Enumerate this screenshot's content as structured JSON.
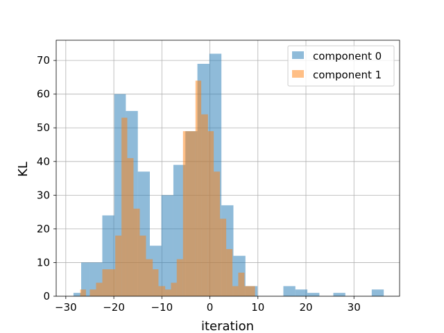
{
  "chart_data": {
    "type": "bar",
    "subtype": "overlaid-histogram",
    "xlabel": "iteration",
    "ylabel": "KL",
    "xlim": [
      -32.0,
      39.5
    ],
    "ylim": [
      0,
      76
    ],
    "xticks": [
      -30,
      -20,
      -10,
      0,
      10,
      20,
      30
    ],
    "yticks": [
      0,
      10,
      20,
      30,
      40,
      50,
      60,
      70
    ],
    "grid": true,
    "legend_position": "top-right",
    "series": [
      {
        "name": "component 0",
        "color": "#1f77b4",
        "alpha": 0.5,
        "bins": [
          [
            -28.4,
            -26.8,
            1
          ],
          [
            -26.8,
            -25.0,
            10
          ],
          [
            -25.0,
            -22.4,
            10
          ],
          [
            -22.4,
            -19.9,
            24
          ],
          [
            -19.9,
            -17.5,
            60
          ],
          [
            -17.5,
            -15.0,
            55
          ],
          [
            -15.0,
            -12.5,
            37
          ],
          [
            -12.5,
            -10.1,
            15
          ],
          [
            -10.1,
            -7.6,
            30
          ],
          [
            -7.6,
            -5.1,
            39
          ],
          [
            -5.1,
            -2.6,
            49
          ],
          [
            -2.6,
            -0.1,
            69
          ],
          [
            -0.1,
            2.4,
            72
          ],
          [
            2.4,
            4.9,
            27
          ],
          [
            4.9,
            7.4,
            12
          ],
          [
            7.4,
            9.9,
            3
          ],
          [
            15.3,
            17.8,
            3
          ],
          [
            17.8,
            20.3,
            2
          ],
          [
            20.3,
            22.8,
            1
          ],
          [
            25.7,
            28.2,
            1
          ],
          [
            33.7,
            36.2,
            2
          ]
        ]
      },
      {
        "name": "component 1",
        "color": "#ff7f0e",
        "alpha": 0.5,
        "bins": [
          [
            -27.0,
            -25.8,
            2
          ],
          [
            -25.0,
            -23.7,
            2
          ],
          [
            -23.7,
            -22.4,
            4
          ],
          [
            -22.4,
            -19.7,
            8
          ],
          [
            -19.7,
            -18.4,
            18
          ],
          [
            -18.4,
            -17.2,
            53
          ],
          [
            -17.2,
            -15.9,
            41
          ],
          [
            -15.9,
            -14.6,
            26
          ],
          [
            -14.6,
            -13.3,
            18
          ],
          [
            -13.3,
            -11.9,
            11
          ],
          [
            -11.9,
            -10.7,
            8
          ],
          [
            -10.7,
            -9.3,
            3
          ],
          [
            -9.3,
            -8.1,
            2
          ],
          [
            -8.1,
            -6.9,
            4
          ],
          [
            -6.9,
            -5.6,
            11
          ],
          [
            -5.6,
            -3.0,
            49
          ],
          [
            -3.0,
            -1.8,
            64
          ],
          [
            -1.8,
            -0.4,
            54
          ],
          [
            -0.4,
            0.8,
            49
          ],
          [
            0.8,
            2.1,
            37
          ],
          [
            2.1,
            3.4,
            23
          ],
          [
            3.4,
            4.7,
            14
          ],
          [
            4.7,
            5.9,
            3
          ],
          [
            5.9,
            7.2,
            7
          ],
          [
            7.2,
            9.4,
            3
          ]
        ]
      }
    ]
  }
}
